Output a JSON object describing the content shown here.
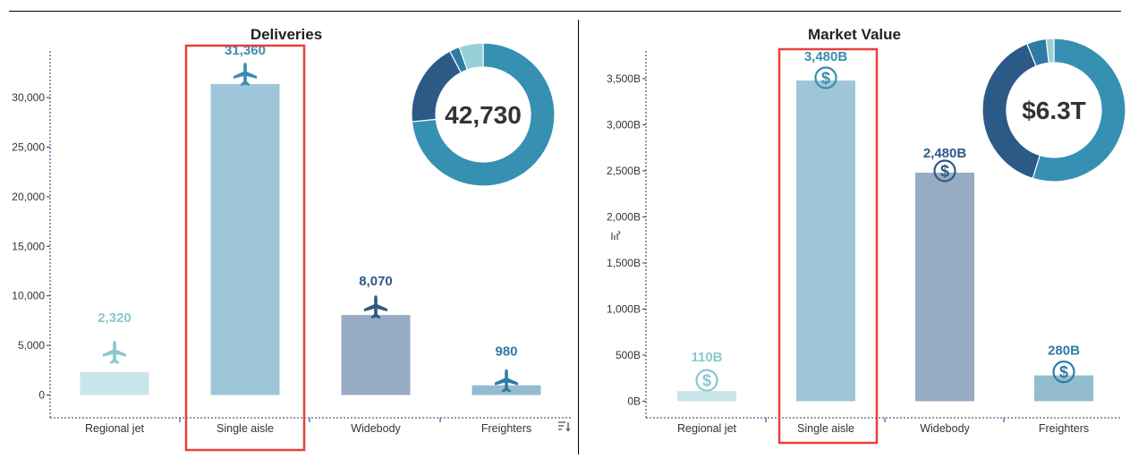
{
  "colors": {
    "regional": "#c8e6e8",
    "single": "#9fc6d8",
    "wide": "#97abc2",
    "freight": "#94bccf",
    "label_regional": "#88c9cc",
    "label_single": "#3a8db0",
    "label_wide": "#2d5a86",
    "label_freight": "#2e7ca3",
    "highlight": "#e8403c",
    "donut": [
      "#3590b2",
      "#2c5a87",
      "#2f7ba6",
      "#96cfd4"
    ]
  },
  "chart_data": [
    {
      "type": "bar",
      "title": "Deliveries",
      "categories": [
        "Regional jet",
        "Single aisle",
        "Widebody",
        "Freighters"
      ],
      "values": [
        2320,
        31360,
        8070,
        980
      ],
      "value_labels": [
        "2,320",
        "31,360",
        "8,070",
        "980"
      ],
      "marker_icon": "airplane-icon",
      "yticks": [
        0,
        5000,
        10000,
        15000,
        20000,
        25000,
        30000
      ],
      "ytick_labels": [
        "0",
        "5,000",
        "10,000",
        "15,000",
        "20,000",
        "25,000",
        "30,000"
      ],
      "ylim": [
        -2300,
        34700
      ],
      "highlighted_category": "Single aisle",
      "donut": {
        "center_label": "42,730",
        "values": [
          31360,
          8070,
          980,
          2320
        ]
      }
    },
    {
      "type": "bar",
      "title": "Market Value",
      "categories": [
        "Regional jet",
        "Single aisle",
        "Widebody",
        "Freighters"
      ],
      "values": [
        110,
        3480,
        2480,
        280
      ],
      "value_labels": [
        "110B",
        "3,480B",
        "2,480B",
        "280B"
      ],
      "marker_icon": "dollar-circle-icon",
      "yticks": [
        0,
        500,
        1000,
        1500,
        2000,
        2500,
        3000,
        3500
      ],
      "ytick_labels": [
        "0B",
        "500B",
        "1,000B",
        "1,500B",
        "2,000B",
        "2,500B",
        "3,000B",
        "3,500B"
      ],
      "ylim": [
        -180,
        3800
      ],
      "highlighted_category": "Single aisle",
      "donut": {
        "center_label": "$6.3T",
        "values": [
          3480,
          2480,
          280,
          110
        ]
      }
    }
  ]
}
